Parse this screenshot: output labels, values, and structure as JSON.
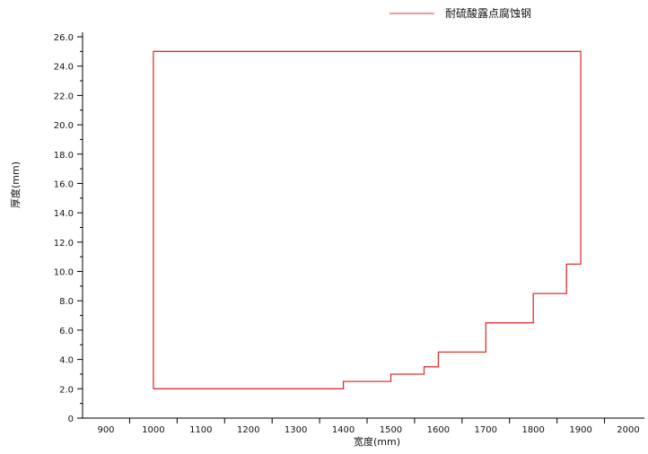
{
  "chart_data": {
    "type": "line",
    "title": "",
    "xlabel": "宽度(mm)",
    "ylabel": "厚度(mm)",
    "xlim": [
      850,
      2000
    ],
    "ylim": [
      0,
      26.0
    ],
    "x_ticks": [
      900,
      1000,
      1100,
      1200,
      1300,
      1400,
      1500,
      1600,
      1700,
      1800,
      1900,
      2000
    ],
    "y_ticks": [
      0,
      2.0,
      4.0,
      6.0,
      8.0,
      10.0,
      12.0,
      14.0,
      16.0,
      18.0,
      20.0,
      22.0,
      24.0,
      26.0
    ],
    "y_tick_labels": [
      "0",
      "2.0",
      "4.0",
      "6.0",
      "8.0",
      "10.0",
      "12.0",
      "14.0",
      "16.0",
      "18.0",
      "20.0",
      "22.0",
      "24.0",
      "26.0"
    ],
    "grid": false,
    "legend_position": "top-right",
    "series": [
      {
        "name": "耐硫酸露点腐蚀钢",
        "color": "#e03030",
        "x": [
          1000,
          1000,
          1900,
          1900,
          1870,
          1870,
          1800,
          1800,
          1700,
          1700,
          1600,
          1600,
          1570,
          1570,
          1500,
          1500,
          1400,
          1400,
          1350,
          1350,
          1000
        ],
        "y": [
          2.0,
          25.0,
          25.0,
          10.5,
          10.5,
          8.5,
          8.5,
          6.5,
          6.5,
          4.5,
          4.5,
          3.5,
          3.5,
          3.0,
          3.0,
          2.5,
          2.5,
          2.0,
          2.0,
          2.0,
          2.0
        ]
      }
    ]
  }
}
